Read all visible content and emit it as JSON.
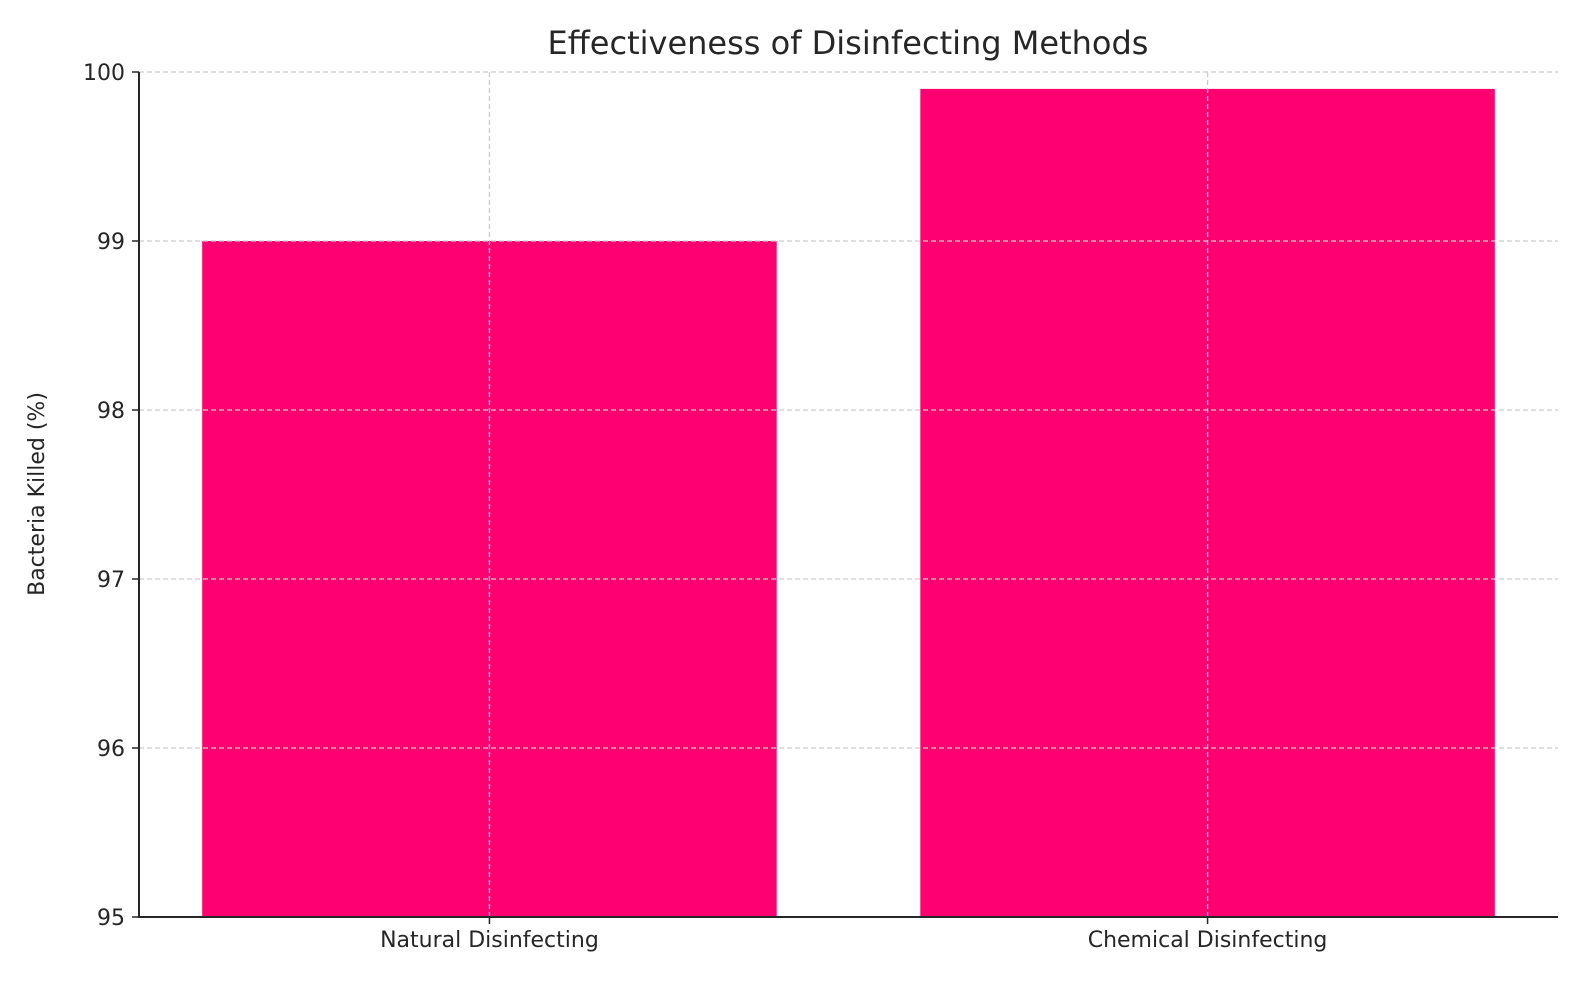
{
  "chart_data": {
    "type": "bar",
    "title": "Effectiveness of Disinfecting Methods",
    "xlabel": "",
    "ylabel": "Bacteria Killed (%)",
    "categories": [
      "Natural Disinfecting",
      "Chemical Disinfecting"
    ],
    "values": [
      99.0,
      99.9
    ],
    "ylim": [
      95,
      100
    ],
    "yticks": [
      "95",
      "96",
      "97",
      "98",
      "99",
      "100"
    ],
    "grid": true,
    "bar_color": "#FF0070"
  }
}
